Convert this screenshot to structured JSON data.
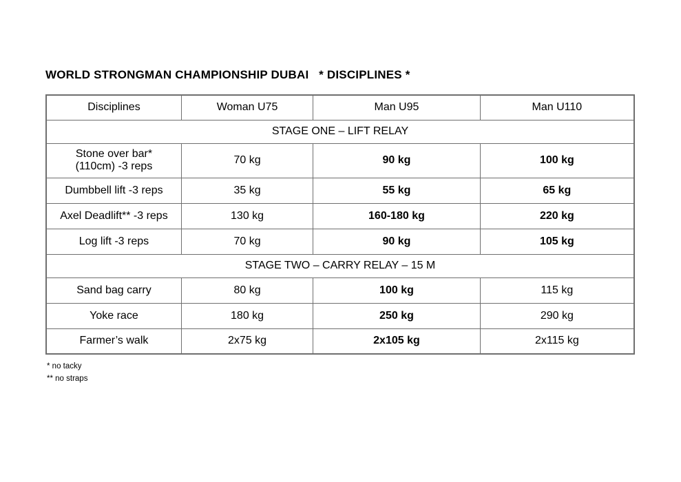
{
  "title": "WORLD STRONGMAN CHAMPIONSHIP DUBAI   * DISCIPLINES *",
  "table": {
    "headers": [
      "Disciplines",
      "Woman U75",
      "Man U95",
      "Man U110"
    ],
    "sections": [
      {
        "title": "STAGE ONE – LIFT RELAY",
        "rows": [
          {
            "cells": [
              "Stone over bar*\n(110cm) -3 reps",
              "70 kg",
              "90 kg",
              "100 kg"
            ]
          },
          {
            "cells": [
              "Dumbbell lift -3 reps",
              "35 kg",
              "55 kg",
              "65 kg"
            ]
          },
          {
            "cells": [
              "Axel Deadlift** -3 reps",
              "130 kg",
              "160-180 kg",
              "220 kg"
            ]
          },
          {
            "cells": [
              "Log lift -3 reps",
              "70 kg",
              "90 kg",
              "105 kg"
            ]
          }
        ]
      },
      {
        "title": "STAGE TWO – CARRY RELAY – 15 M",
        "rows": [
          {
            "cells": [
              "Sand bag carry",
              "80 kg",
              "100 kg",
              "115 kg"
            ]
          },
          {
            "cells": [
              "Yoke race",
              "180 kg",
              "250 kg",
              "290 kg"
            ]
          },
          {
            "cells": [
              "Farmer’s walk",
              "2x75 kg",
              "2x105 kg",
              "2x115 kg"
            ]
          }
        ]
      }
    ],
    "footnotes": [
      "* no tacky",
      "** no straps"
    ]
  }
}
